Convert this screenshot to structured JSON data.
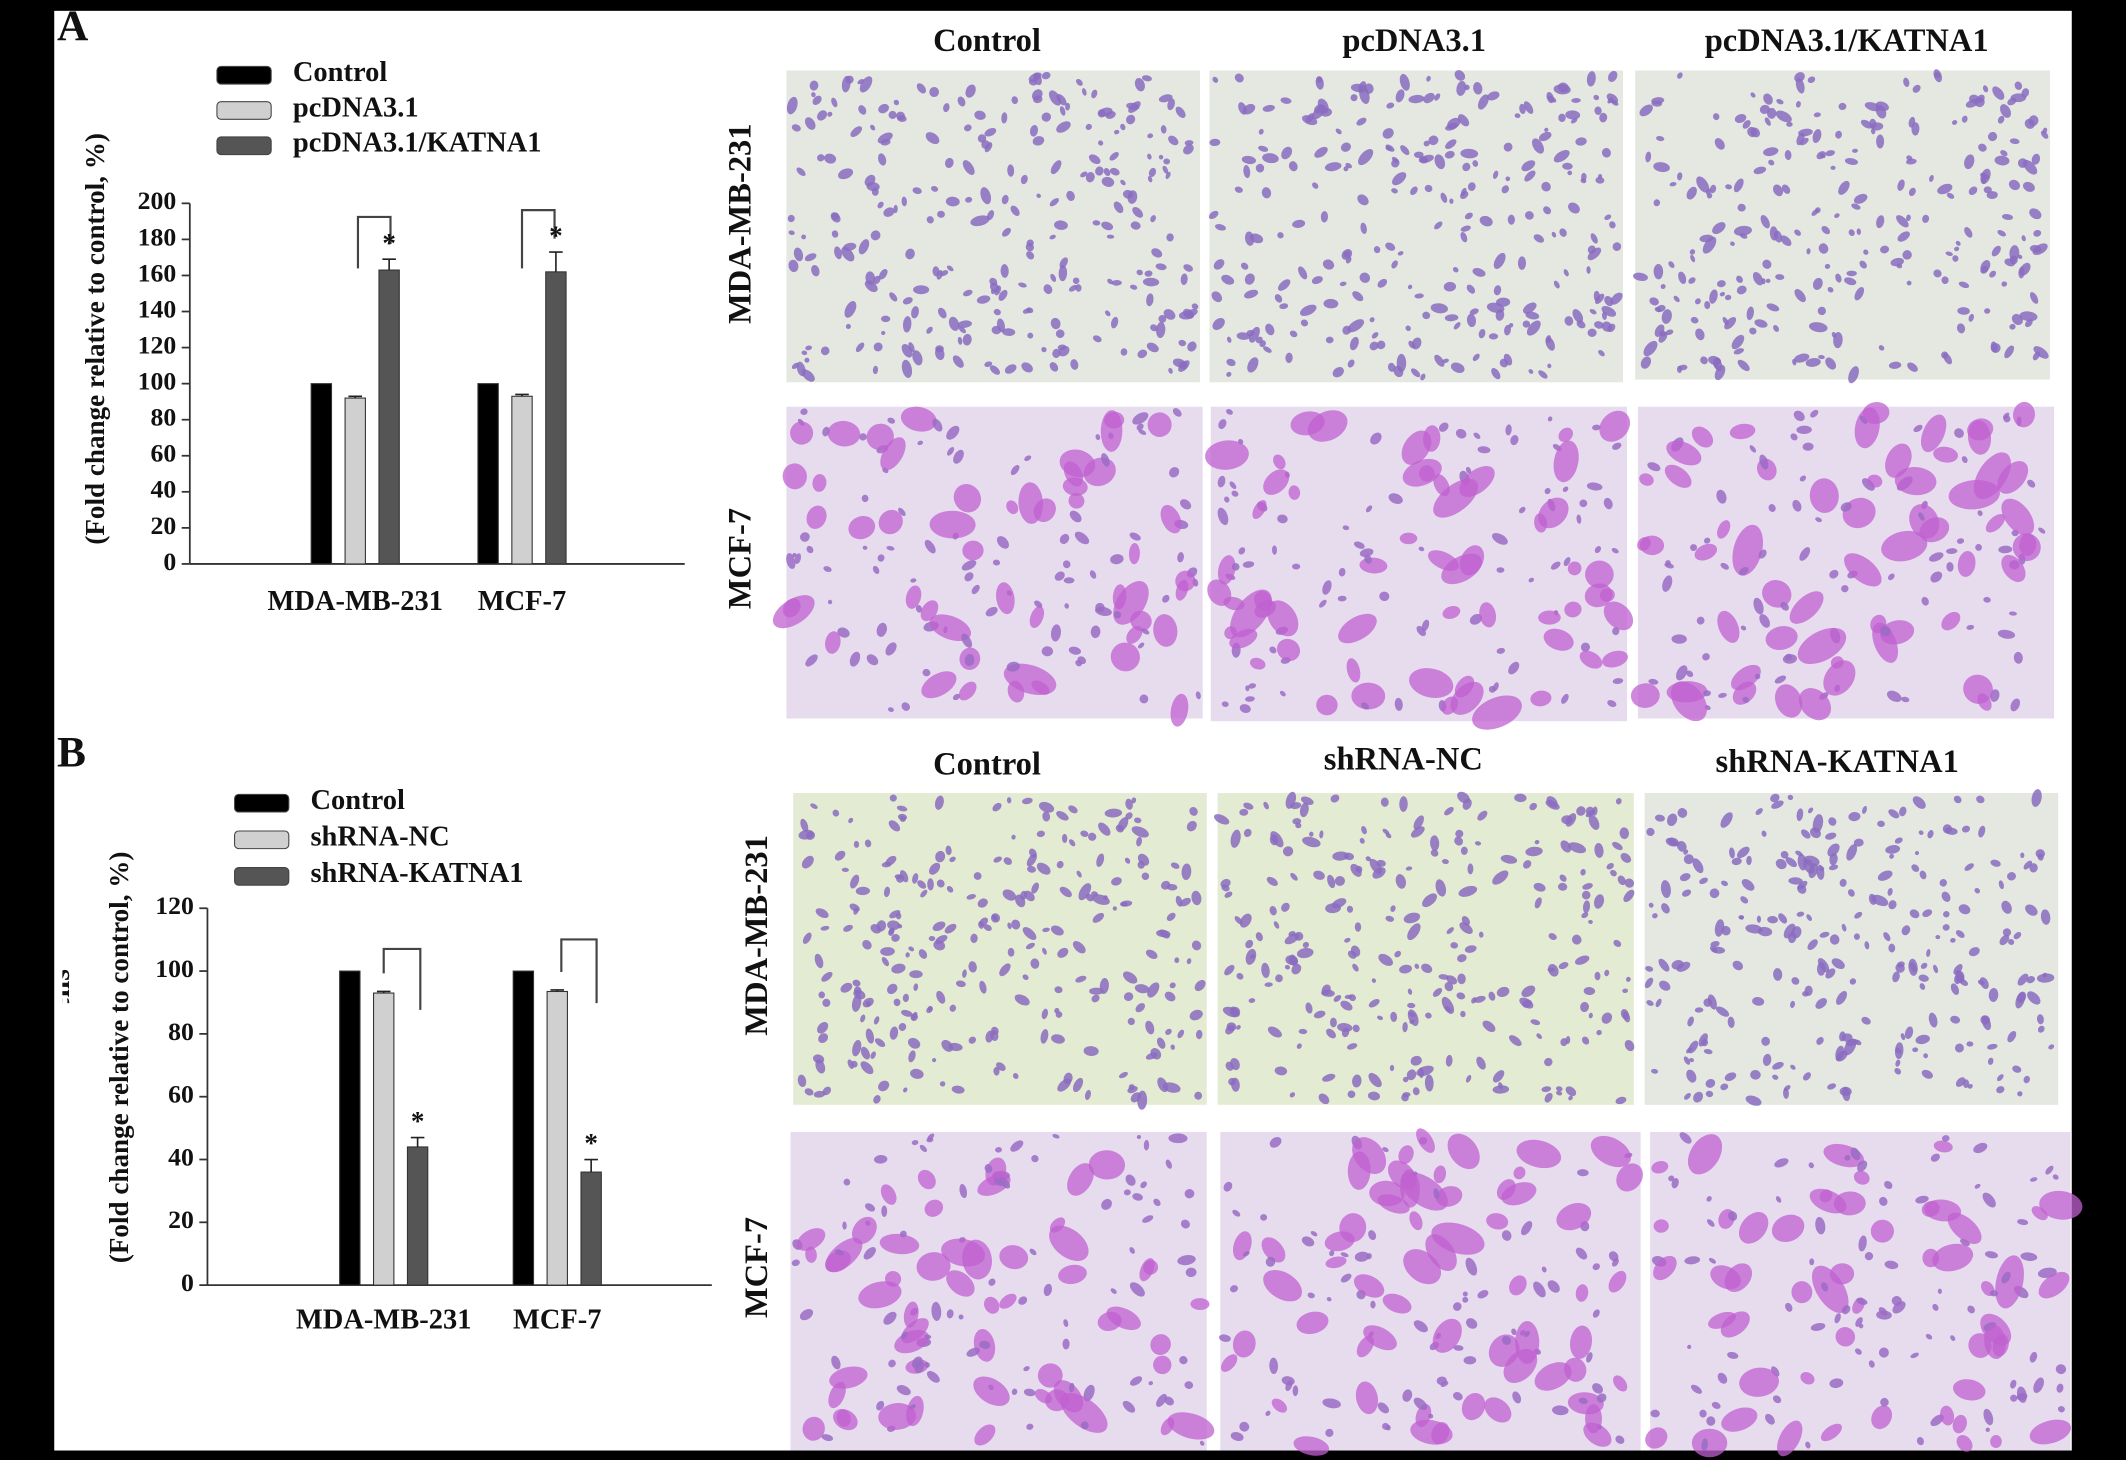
{
  "chart_data": [
    {
      "type": "bar",
      "panel_label": "A",
      "y_label": "(Fold change relative to control, %)",
      "categories": [
        "MDA-MB-231",
        "MCF-7"
      ],
      "series": [
        {
          "name": "Control",
          "color": "#000000",
          "values": [
            100,
            100
          ]
        },
        {
          "name": "pcDNA3.1",
          "color": "#d0d0d0",
          "values": [
            92,
            93
          ],
          "errors": [
            1,
            1
          ]
        },
        {
          "name": "pcDNA3.1/KATNA1",
          "color": "#555555",
          "values": [
            163,
            162
          ],
          "errors": [
            6,
            11
          ]
        }
      ],
      "annotations": [
        "*",
        "*"
      ],
      "ylim": [
        0,
        200
      ],
      "yticks": [
        0,
        20,
        40,
        60,
        80,
        100,
        120,
        140,
        160,
        180,
        200
      ],
      "grid": false
    },
    {
      "type": "bar",
      "panel_label": "B",
      "y_label": "(Fold change relative to control, %)",
      "y_label_cropped": "Invading cells",
      "categories": [
        "MDA-MB-231",
        "MCF-7"
      ],
      "series": [
        {
          "name": "Control",
          "color": "#000000",
          "values": [
            100,
            100
          ]
        },
        {
          "name": "shRNA-NC",
          "color": "#d0d0d0",
          "values": [
            93,
            93.5
          ],
          "errors": [
            0.5,
            0.5
          ]
        },
        {
          "name": "shRNA-KATNA1",
          "color": "#555555",
          "values": [
            44,
            36
          ],
          "errors": [
            3,
            4
          ]
        }
      ],
      "annotations": [
        "*",
        "*"
      ],
      "ylim": [
        0,
        120
      ],
      "yticks": [
        0,
        20,
        40,
        60,
        80,
        100,
        120
      ],
      "grid": false
    }
  ],
  "micrographs": [
    {
      "columns": [
        "Control",
        "pcDNA3.1",
        "pcDNA3.1/KATNA1"
      ],
      "rows": [
        "MDA-MB-231",
        "MCF-7"
      ]
    },
    {
      "columns": [
        "Control",
        "shRNA-NC",
        "shRNA-KATNA1"
      ],
      "rows": [
        "MDA-MB-231",
        "MCF-7"
      ]
    }
  ]
}
